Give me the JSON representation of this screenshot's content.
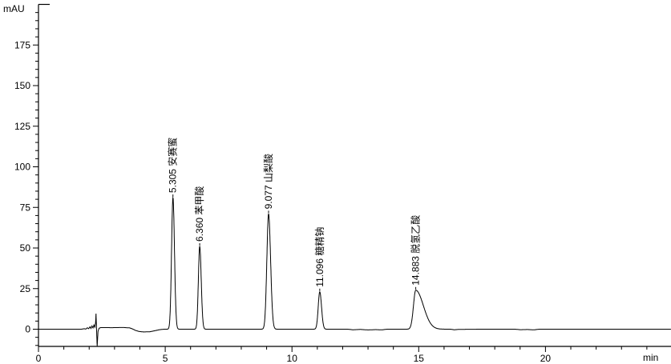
{
  "chart_data": {
    "type": "line",
    "title": "",
    "xlabel": "min",
    "ylabel": "mAU",
    "x_axis": {
      "min": 0,
      "max": 24.95,
      "major_ticks": [
        0,
        5,
        10,
        15,
        20
      ],
      "minor_step": 1,
      "minor_max": 24
    },
    "y_axis": {
      "min": -12,
      "max": 200,
      "major_ticks": [
        0,
        25,
        50,
        75,
        100,
        125,
        150,
        175
      ],
      "minor_step": 5,
      "minor_min": -10,
      "minor_max": 195
    },
    "grid": "off",
    "legend": "none",
    "trace_color": "#000000",
    "peaks": [
      {
        "rt": "5.305",
        "name": "安赛蜜",
        "height_mau": 81,
        "sigma_left": 0.055,
        "sigma_right": 0.06
      },
      {
        "rt": "6.360",
        "name": "苯甲酸",
        "height_mau": 51,
        "sigma_left": 0.052,
        "sigma_right": 0.06
      },
      {
        "rt": "9.077",
        "name": "山梨酸",
        "height_mau": 71,
        "sigma_left": 0.068,
        "sigma_right": 0.08
      },
      {
        "rt": "11.096",
        "name": "糖精钠",
        "height_mau": 23,
        "sigma_left": 0.06,
        "sigma_right": 0.07
      },
      {
        "rt": "14.883",
        "name": "脱氢乙酸",
        "height_mau": 24,
        "sigma_left": 0.09,
        "sigma_right": 0.3
      }
    ],
    "baseline_points": [
      [
        0,
        0
      ],
      [
        1.7,
        0
      ],
      [
        1.8,
        0.3
      ],
      [
        1.87,
        0.1
      ],
      [
        1.93,
        0.9
      ],
      [
        1.98,
        0.3
      ],
      [
        2.03,
        1.5
      ],
      [
        2.07,
        0.5
      ],
      [
        2.11,
        2.0
      ],
      [
        2.15,
        0.8
      ],
      [
        2.19,
        2.6
      ],
      [
        2.22,
        1.2
      ],
      [
        2.25,
        3.2
      ],
      [
        2.27,
        9.6
      ],
      [
        2.29,
        0.2
      ],
      [
        2.315,
        -10.3
      ],
      [
        2.35,
        -1.2
      ],
      [
        2.39,
        0.6
      ],
      [
        2.46,
        1.0
      ],
      [
        2.9,
        0.95
      ],
      [
        3.35,
        1.05
      ],
      [
        3.6,
        0.8
      ],
      [
        3.72,
        0.1
      ],
      [
        3.82,
        -0.7
      ],
      [
        3.97,
        -1.4
      ],
      [
        4.15,
        -1.7
      ],
      [
        4.4,
        -1.55
      ],
      [
        4.6,
        -0.9
      ],
      [
        4.78,
        -0.3
      ],
      [
        4.95,
        0
      ],
      [
        12.2,
        0
      ],
      [
        12.4,
        -0.35
      ],
      [
        12.7,
        -0.15
      ],
      [
        13.0,
        -0.45
      ],
      [
        13.3,
        -0.25
      ],
      [
        13.55,
        -0.4
      ],
      [
        13.75,
        0
      ],
      [
        16.25,
        0
      ],
      [
        16.4,
        -0.35
      ],
      [
        16.6,
        -0.1
      ],
      [
        17.5,
        0
      ],
      [
        18.8,
        0
      ],
      [
        19.0,
        -0.3
      ],
      [
        19.3,
        -0.2
      ],
      [
        19.55,
        -0.4
      ],
      [
        19.75,
        0
      ],
      [
        24.95,
        0
      ]
    ]
  }
}
